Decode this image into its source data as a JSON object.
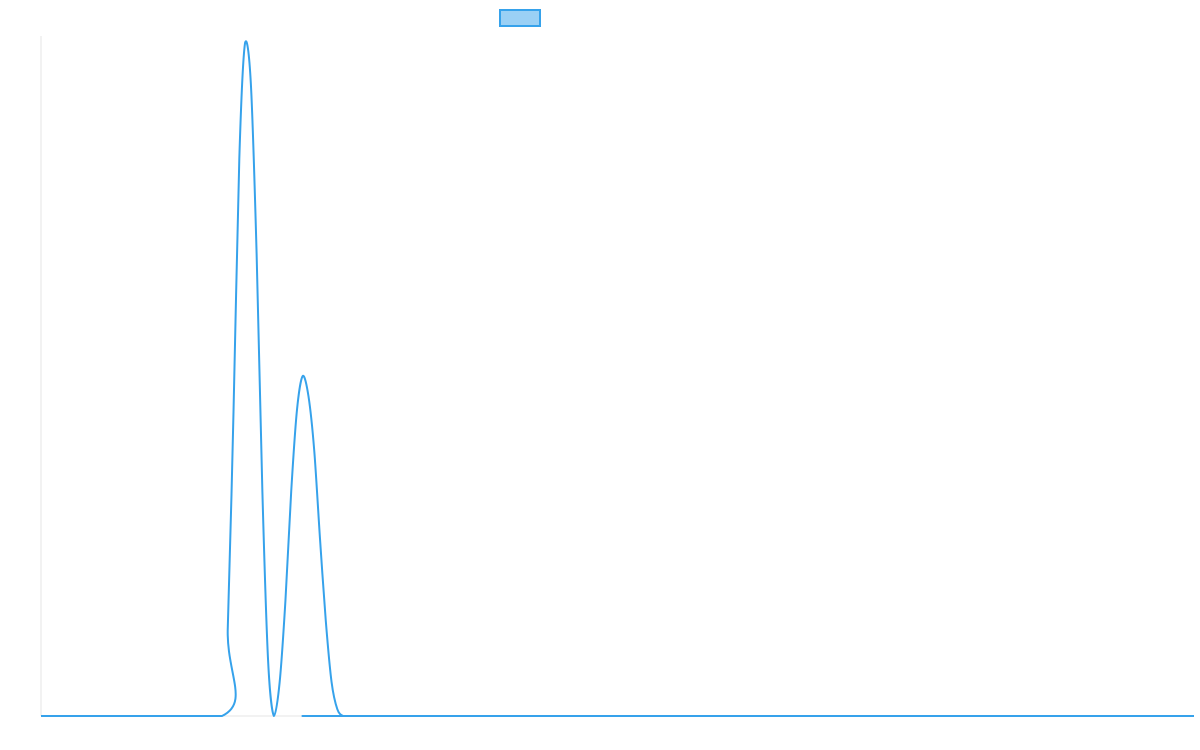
{
  "chart_data": {
    "type": "line",
    "title": "",
    "xlabel": "",
    "ylabel": "",
    "grid": false,
    "legend": {
      "placement": "top-center",
      "show_label": false
    },
    "xlim": [
      0,
      100
    ],
    "ylim": [
      0,
      1
    ],
    "series": [
      {
        "color": "#36a2eb",
        "fill_color": "#9ad0f5",
        "x": [
          0,
          15.7,
          16.2,
          16.7,
          17.2,
          17.7,
          18.2,
          18.7,
          19.2,
          19.7,
          20.2,
          20.7,
          21.2,
          21.7,
          22.2,
          22.7,
          23.2,
          23.7,
          24.2,
          24.7,
          25.2,
          25.7,
          26.2,
          26.7,
          27.2,
          27.6,
          100
        ],
        "y": [
          0,
          0,
          0.13,
          0.45,
          0.82,
          0.99,
          0.93,
          0.68,
          0.33,
          0.08,
          0,
          0.05,
          0.17,
          0.33,
          0.45,
          0.5,
          0.47,
          0.39,
          0.26,
          0.14,
          0.05,
          0.01,
          0,
          0,
          0,
          0,
          0
        ]
      }
    ]
  }
}
